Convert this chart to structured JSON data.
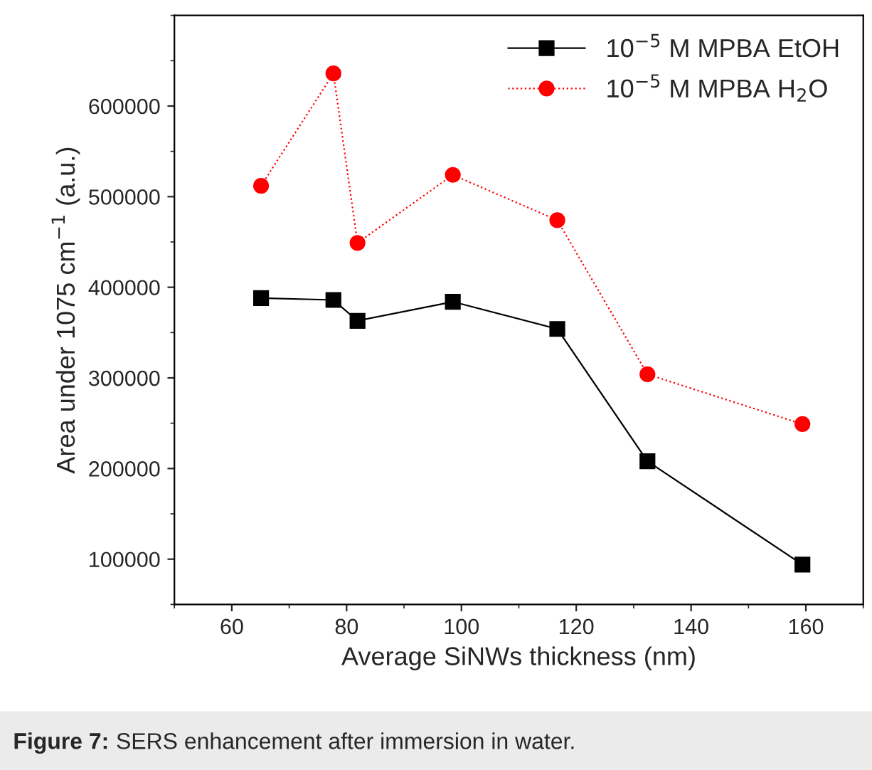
{
  "chart_data": {
    "type": "line",
    "xlabel": "Average SiNWs thickness (nm)",
    "ylabel": "Area under 1075 cm$^{−1}$ (a.u.)",
    "x": [
      65.1,
      77.7,
      81.9,
      98.5,
      116.7,
      132.4,
      159.4
    ],
    "series": [
      {
        "name": "10$^{−5}$ M MPBA EtOH",
        "color": "#000000",
        "marker": "square",
        "line_style": "solid",
        "values": [
          388000,
          386000,
          363000,
          384000,
          354000,
          208000,
          94000
        ]
      },
      {
        "name": "10$^{−5}$ M MPBA H$_{2}$O",
        "color": "#ff0000",
        "marker": "circle",
        "line_style": "dotted",
        "values": [
          512000,
          636000,
          449000,
          524000,
          474000,
          304000,
          249000
        ]
      }
    ],
    "xlim": [
      50,
      170
    ],
    "xticks": [
      60,
      80,
      100,
      120,
      140,
      160
    ],
    "ylim": [
      50000,
      700000
    ],
    "yticks": [
      100000,
      200000,
      300000,
      400000,
      500000,
      600000
    ],
    "grid": false,
    "legend": "top right",
    "annotations": [
      "Figure 7: SERS enhancement after immersion in water."
    ]
  }
}
